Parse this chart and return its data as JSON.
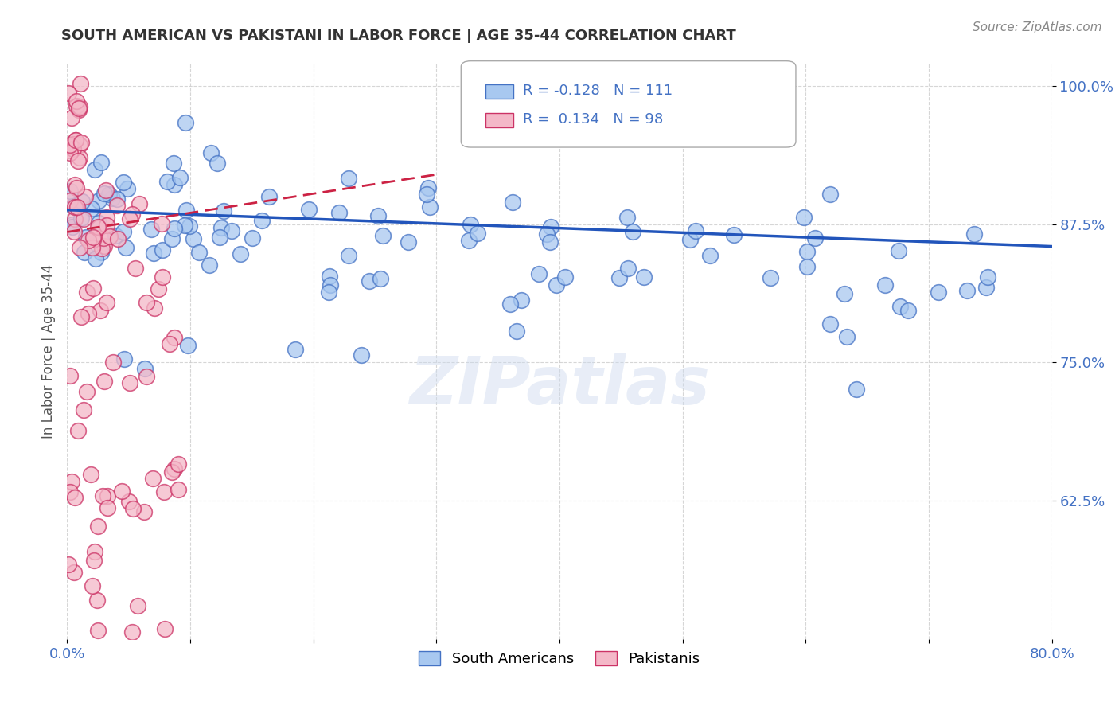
{
  "title": "SOUTH AMERICAN VS PAKISTANI IN LABOR FORCE | AGE 35-44 CORRELATION CHART",
  "source": "Source: ZipAtlas.com",
  "ylabel": "In Labor Force | Age 35-44",
  "xlim": [
    0.0,
    0.8
  ],
  "ylim": [
    0.5,
    1.02
  ],
  "yticks": [
    0.625,
    0.75,
    0.875,
    1.0
  ],
  "ytick_labels": [
    "62.5%",
    "75.0%",
    "87.5%",
    "100.0%"
  ],
  "xticks": [
    0.0,
    0.1,
    0.2,
    0.3,
    0.4,
    0.5,
    0.6,
    0.7,
    0.8
  ],
  "xtick_labels": [
    "0.0%",
    "",
    "",
    "",
    "",
    "",
    "",
    "",
    "80.0%"
  ],
  "blue_face": "#a8c8f0",
  "blue_edge": "#4472c4",
  "pink_face": "#f4b8c8",
  "pink_edge": "#cc3366",
  "blue_line_color": "#2255bb",
  "pink_line_color": "#cc2244",
  "legend_blue_label": "South Americans",
  "legend_pink_label": "Pakistanis",
  "R_blue": -0.128,
  "N_blue": 111,
  "R_pink": 0.134,
  "N_pink": 98,
  "watermark": "ZIPatlas",
  "title_color": "#333333",
  "axis_color": "#4472c4",
  "grid_color": "#cccccc",
  "annotation_color": "#4472c4"
}
